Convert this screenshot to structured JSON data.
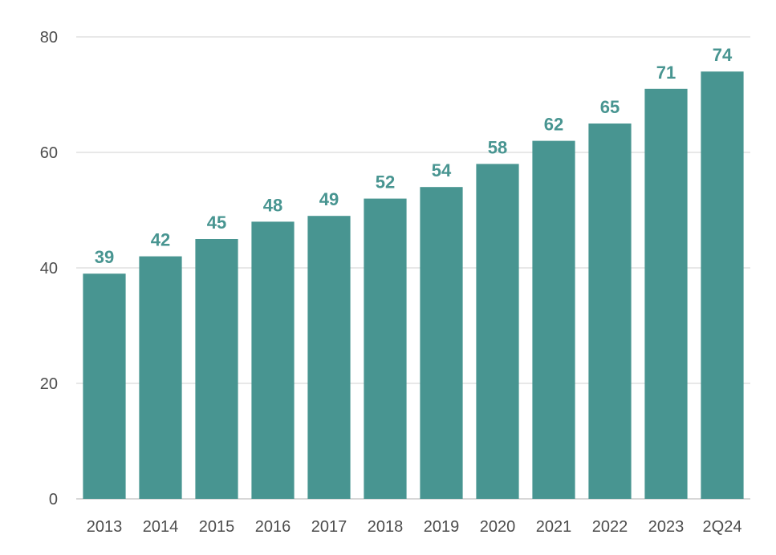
{
  "chart_data": {
    "type": "bar",
    "categories": [
      "2013",
      "2014",
      "2015",
      "2016",
      "2017",
      "2018",
      "2019",
      "2020",
      "2021",
      "2022",
      "2023",
      "2Q24"
    ],
    "values": [
      39,
      42,
      45,
      48,
      49,
      52,
      54,
      58,
      62,
      65,
      71,
      74
    ],
    "data_labels": [
      "39",
      "42",
      "45",
      "48",
      "49",
      "52",
      "54",
      "58",
      "62",
      "65",
      "71",
      "74"
    ],
    "ylim": [
      0,
      80
    ],
    "yticks": [
      0,
      20,
      40,
      60,
      80
    ],
    "ytick_labels": [
      "0",
      "20",
      "40",
      "60",
      "80"
    ],
    "grid": true,
    "legend": "none",
    "colors": {
      "bar": "#489591",
      "label": "#489591",
      "grid": "#d9d9d9",
      "axis_text": "#4d4d4d"
    }
  }
}
